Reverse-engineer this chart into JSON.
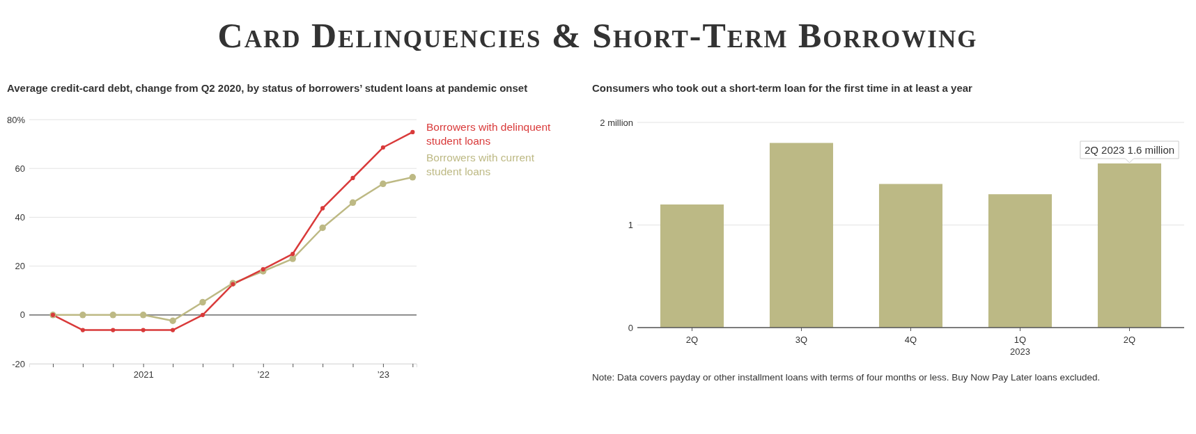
{
  "chart_data": [
    {
      "type": "line",
      "title": "Card Delinquencies & Short-Term Borrowing",
      "subtitle": "Average credit-card debt, change from Q2 2020, by status of borrowers’ student loans at pandemic onset",
      "x": [
        "2020-04",
        "2020-07",
        "2020-10",
        "2021-01",
        "2021-04",
        "2021-07",
        "2021-10",
        "2022-01",
        "2022-04",
        "2022-07",
        "2022-10",
        "2023-01",
        "2023-04"
      ],
      "series": [
        {
          "name": "Borrowers with delinquent student loans",
          "color": "#d93a3a",
          "values": [
            0,
            -6.2,
            -6.2,
            -6.2,
            -6.2,
            0,
            12.6,
            18.7,
            25,
            43.7,
            56.1,
            68.6,
            74.9
          ]
        },
        {
          "name": "Borrowers with current student loans",
          "color": "#bdb984",
          "values": [
            0,
            0,
            0,
            0,
            -2.4,
            5.2,
            13,
            17.9,
            23,
            35.7,
            46,
            53.7,
            56.4
          ]
        }
      ],
      "xlim": [
        "2020-01-20",
        "2023-04-13"
      ],
      "xticks": [
        {
          "value": "2020-04",
          "label": null
        },
        {
          "value": "2020-07",
          "label": null
        },
        {
          "value": "2020-10",
          "label": null
        },
        {
          "value": "2021-01",
          "label": "2021"
        },
        {
          "value": "2021-04",
          "label": null
        },
        {
          "value": "2021-07",
          "label": null
        },
        {
          "value": "2021-10",
          "label": null
        },
        {
          "value": "2022-01",
          "label": "’22"
        },
        {
          "value": "2022-04",
          "label": null
        },
        {
          "value": "2022-07",
          "label": null
        },
        {
          "value": "2022-10",
          "label": null
        },
        {
          "value": "2023-01",
          "label": "’23"
        },
        {
          "value": "2023-04",
          "label": null
        }
      ],
      "ylim": [
        -20,
        80
      ],
      "yticks": [
        -20,
        0,
        20,
        40,
        60,
        {
          "value": 80,
          "label": "80%"
        }
      ],
      "ref_lines": [
        {
          "axis": "y",
          "value": 0,
          "color": "#555555"
        }
      ],
      "grid": "y",
      "marker": "circle",
      "line_style": "solid",
      "legend": "top right"
    },
    {
      "type": "bar",
      "title": "Consumers who took out a short-term loan for the first time in at least a year",
      "categories": [
        "2Q",
        "3Q",
        "4Q",
        "1Q\n2023",
        "2Q"
      ],
      "values": [
        1.2,
        1.8,
        1.4,
        1.3,
        1.6
      ],
      "color": "#bcb985",
      "value_labels": [
        null,
        null,
        null,
        null,
        "2Q 2023 1.6 million"
      ],
      "ylim": [
        0,
        2
      ],
      "yticks": [
        0,
        1,
        {
          "value": 2,
          "label": "2 million"
        }
      ],
      "grid": "y",
      "annotations": [
        "Note: Data covers payday or other installment loans with terms of four months or less. Buy Now Pay Later loans excluded."
      ]
    }
  ]
}
